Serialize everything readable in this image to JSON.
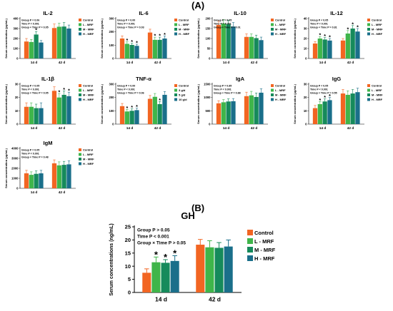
{
  "labels": {
    "panel_a": "(A)",
    "panel_b": "(B)"
  },
  "colors": {
    "control": "#f26522",
    "l": "#3fb54a",
    "m": "#168a5b",
    "h": "#1a6f8a"
  },
  "chart_data": [
    {
      "type": "bar",
      "title": "IL-2",
      "ylabel": "Serum concentration (pg/mL)",
      "categories": [
        "14 d",
        "42 d"
      ],
      "ylim": [
        0,
        400
      ],
      "yticks": [
        0,
        100,
        200,
        300,
        400
      ],
      "stats": [
        "Group P = 0.06",
        "Time P < 0.001",
        "Group × Time P = 0.05"
      ],
      "series": [
        {
          "name": "Control",
          "values": [
            170,
            305
          ],
          "errors": [
            30,
            40
          ],
          "sig": [
            "",
            ""
          ]
        },
        {
          "name": "L - MRF",
          "values": [
            165,
            318
          ],
          "errors": [
            25,
            35
          ],
          "sig": [
            "",
            ""
          ]
        },
        {
          "name": "M - MRF",
          "values": [
            240,
            320
          ],
          "errors": [
            30,
            40
          ],
          "sig": [
            "*",
            ""
          ]
        },
        {
          "name": "H - MRF",
          "values": [
            160,
            300
          ],
          "errors": [
            20,
            35
          ],
          "sig": [
            "",
            ""
          ]
        }
      ]
    },
    {
      "type": "bar",
      "title": "IL-6",
      "ylabel": "Serum concentration (pg/mL)",
      "categories": [
        "14 d",
        "42 d"
      ],
      "ylim": [
        0,
        300
      ],
      "yticks": [
        0,
        100,
        200,
        300
      ],
      "stats": [
        "Group P = 0.00",
        "Time P = 0.001",
        "Group × Time P = 0.03"
      ],
      "series": [
        {
          "name": "Control",
          "values": [
            150,
            195
          ],
          "errors": [
            20,
            25
          ],
          "sig": [
            "",
            ""
          ]
        },
        {
          "name": "L - MRF",
          "values": [
            110,
            140
          ],
          "errors": [
            15,
            20
          ],
          "sig": [
            "*",
            "*"
          ]
        },
        {
          "name": "M - MRF",
          "values": [
            102,
            140
          ],
          "errors": [
            12,
            20
          ],
          "sig": [
            "*",
            "*"
          ]
        },
        {
          "name": "H - MRF",
          "values": [
            95,
            150
          ],
          "errors": [
            12,
            20
          ],
          "sig": [
            "*",
            "*"
          ]
        }
      ]
    },
    {
      "type": "bar",
      "title": "IL-10",
      "ylabel": "Serum concentration (pg/mL)",
      "categories": [
        "14 d",
        "42 d"
      ],
      "ylim": [
        0,
        200
      ],
      "yticks": [
        0,
        50,
        100,
        150,
        200
      ],
      "stats": [
        "Group P = 0.05",
        "Time P = 0.001",
        "Group × Time P = 0.01"
      ],
      "series": [
        {
          "name": "Control",
          "values": [
            168,
            108
          ],
          "errors": [
            20,
            15
          ],
          "sig": [
            "",
            ""
          ]
        },
        {
          "name": "L - MRF",
          "values": [
            175,
            108
          ],
          "errors": [
            20,
            15
          ],
          "sig": [
            "",
            ""
          ]
        },
        {
          "name": "M - MRF",
          "values": [
            172,
            102
          ],
          "errors": [
            20,
            15
          ],
          "sig": [
            "",
            ""
          ]
        },
        {
          "name": "H - MRF",
          "values": [
            160,
            92
          ],
          "errors": [
            20,
            15
          ],
          "sig": [
            "",
            ""
          ]
        }
      ]
    },
    {
      "type": "bar",
      "title": "IL-12",
      "ylabel": "Serum concentration (pg/mL)",
      "categories": [
        "14 d",
        "42 d"
      ],
      "ylim": [
        0,
        40
      ],
      "yticks": [
        0,
        10,
        20,
        30,
        40
      ],
      "stats": [
        "Group P < 0.05",
        "Time P < 0.001",
        "Group × Time P = 0.81"
      ],
      "series": [
        {
          "name": "Control",
          "values": [
            15,
            18
          ],
          "errors": [
            2,
            2
          ],
          "sig": [
            "",
            ""
          ]
        },
        {
          "name": "L - MRF",
          "values": [
            20,
            25
          ],
          "errors": [
            2,
            3
          ],
          "sig": [
            "*",
            "*"
          ]
        },
        {
          "name": "M - MRF",
          "values": [
            19,
            30
          ],
          "errors": [
            2,
            3
          ],
          "sig": [
            "*",
            "*"
          ]
        },
        {
          "name": "H - MRF",
          "values": [
            18,
            27
          ],
          "errors": [
            2,
            3
          ],
          "sig": [
            "*",
            "*"
          ]
        }
      ]
    },
    {
      "type": "bar",
      "title": "IL-1β",
      "ylabel": "Serum concentration (pg/mL)",
      "categories": [
        "14 d",
        "42 d"
      ],
      "ylim": [
        0,
        30
      ],
      "yticks": [
        0,
        10,
        20,
        30
      ],
      "stats": [
        "Group P < 0.05",
        "Time P < 0.001",
        "Group × Time P = 0.05"
      ],
      "series": [
        {
          "name": "Control",
          "values": [
            13,
            25
          ],
          "errors": [
            3,
            3
          ],
          "sig": [
            "",
            ""
          ]
        },
        {
          "name": "L - MRF",
          "values": [
            13,
            20
          ],
          "errors": [
            3,
            3
          ],
          "sig": [
            "",
            "*"
          ]
        },
        {
          "name": "M - MRF",
          "values": [
            12,
            22
          ],
          "errors": [
            3,
            3
          ],
          "sig": [
            "",
            "*"
          ]
        },
        {
          "name": "H - MRF",
          "values": [
            12,
            21
          ],
          "errors": [
            4,
            3
          ],
          "sig": [
            "",
            "*"
          ]
        }
      ]
    },
    {
      "type": "bar",
      "title": "TNF-α",
      "ylabel": "Serum concentration (pg/mL)",
      "categories": [
        "14 d",
        "42 d"
      ],
      "ylim": [
        0,
        300
      ],
      "yticks": [
        0,
        100,
        200,
        300
      ],
      "stats": [
        "Group P = 0.00",
        "Time P < 0.001",
        "Group × Time P = 0.06"
      ],
      "series": [
        {
          "name": "Control",
          "values": [
            135,
            190
          ],
          "errors": [
            20,
            25
          ],
          "sig": [
            "",
            ""
          ]
        },
        {
          "name": "3 g/d",
          "values": [
            95,
            205
          ],
          "errors": [
            15,
            25
          ],
          "sig": [
            "*",
            ""
          ]
        },
        {
          "name": "5 g/d",
          "values": [
            100,
            150
          ],
          "errors": [
            15,
            20
          ],
          "sig": [
            "*",
            "*"
          ]
        },
        {
          "name": "10 g/d",
          "values": [
            105,
            220
          ],
          "errors": [
            15,
            25
          ],
          "sig": [
            "*",
            ""
          ]
        }
      ]
    },
    {
      "type": "bar",
      "title": "IgA",
      "ylabel": "Serum concentration (µg/mL)",
      "categories": [
        "14 d",
        "42 d"
      ],
      "ylim": [
        0,
        1500
      ],
      "yticks": [
        0,
        500,
        1000,
        1500
      ],
      "stats": [
        "Group P = 0.85",
        "Time P < 0.001",
        "Group × Time P = 0.88"
      ],
      "series": [
        {
          "name": "Control",
          "values": [
            780,
            1050
          ],
          "errors": [
            100,
            150
          ],
          "sig": [
            "",
            ""
          ]
        },
        {
          "name": "L - MRF",
          "values": [
            820,
            1080
          ],
          "errors": [
            100,
            150
          ],
          "sig": [
            "",
            ""
          ]
        },
        {
          "name": "M - MRF",
          "values": [
            850,
            1020
          ],
          "errors": [
            100,
            150
          ],
          "sig": [
            "",
            ""
          ]
        },
        {
          "name": "H - MRF",
          "values": [
            860,
            1180
          ],
          "errors": [
            100,
            150
          ],
          "sig": [
            "",
            ""
          ]
        }
      ]
    },
    {
      "type": "bar",
      "title": "IgG",
      "ylabel": "Serum concentration (µg/mL)",
      "categories": [
        "14 d",
        "42 d"
      ],
      "ylim": [
        0,
        30
      ],
      "yticks": [
        0,
        10,
        20,
        30
      ],
      "stats": [
        "Group P < 0.05",
        "Time P < 0.001",
        "Group × Time P = 0.55"
      ],
      "series": [
        {
          "name": "Control",
          "values": [
            12,
            23
          ],
          "errors": [
            2,
            3
          ],
          "sig": [
            "",
            ""
          ]
        },
        {
          "name": "L - MRF",
          "values": [
            15,
            22
          ],
          "errors": [
            2,
            3
          ],
          "sig": [
            "*",
            ""
          ]
        },
        {
          "name": "M - MRF",
          "values": [
            17,
            23
          ],
          "errors": [
            2,
            3
          ],
          "sig": [
            "*",
            ""
          ]
        },
        {
          "name": "H - MRF",
          "values": [
            18,
            24
          ],
          "errors": [
            2,
            3
          ],
          "sig": [
            "*",
            ""
          ]
        }
      ]
    },
    {
      "type": "bar",
      "title": "IgM",
      "ylabel": "Serum concentration (µg/mL)",
      "categories": [
        "14 d",
        "42 d"
      ],
      "ylim": [
        0,
        4000
      ],
      "yticks": [
        0,
        1000,
        2000,
        3000,
        4000
      ],
      "stats": [
        "Group P = 0.05",
        "Time P < 0.001",
        "Group × Time P = 0.48"
      ],
      "series": [
        {
          "name": "Control",
          "values": [
            1500,
            2500
          ],
          "errors": [
            300,
            350
          ],
          "sig": [
            "",
            ""
          ]
        },
        {
          "name": "L - MRF",
          "values": [
            1350,
            2300
          ],
          "errors": [
            300,
            350
          ],
          "sig": [
            "",
            ""
          ]
        },
        {
          "name": "M - MRF",
          "values": [
            1450,
            2350
          ],
          "errors": [
            300,
            350
          ],
          "sig": [
            "",
            ""
          ]
        },
        {
          "name": "H - MRF",
          "values": [
            1500,
            2400
          ],
          "errors": [
            300,
            350
          ],
          "sig": [
            "",
            ""
          ]
        }
      ]
    },
    {
      "type": "bar",
      "title": "GH",
      "ylabel": "Serum concentrations (ng/mL)",
      "categories": [
        "14 d",
        "42 d"
      ],
      "ylim": [
        0,
        25
      ],
      "yticks": [
        0,
        5,
        10,
        15,
        20,
        25
      ],
      "stats": [
        "Group P > 0.05",
        "Time  P < 0.001",
        "Group × Time P > 0.05"
      ],
      "series": [
        {
          "name": "Control",
          "values": [
            7.5,
            18.2
          ],
          "errors": [
            1.5,
            2.0
          ],
          "sig": [
            "",
            ""
          ]
        },
        {
          "name": "L - MRF",
          "values": [
            11.5,
            17.2
          ],
          "errors": [
            2.0,
            2.5
          ],
          "sig": [
            "*",
            ""
          ]
        },
        {
          "name": "M - MRF",
          "values": [
            11.3,
            17.0
          ],
          "errors": [
            1.2,
            2.0
          ],
          "sig": [
            "*",
            ""
          ]
        },
        {
          "name": "H - MRF",
          "values": [
            12.0,
            17.5
          ],
          "errors": [
            2.0,
            2.5
          ],
          "sig": [
            "*",
            ""
          ]
        }
      ]
    }
  ]
}
